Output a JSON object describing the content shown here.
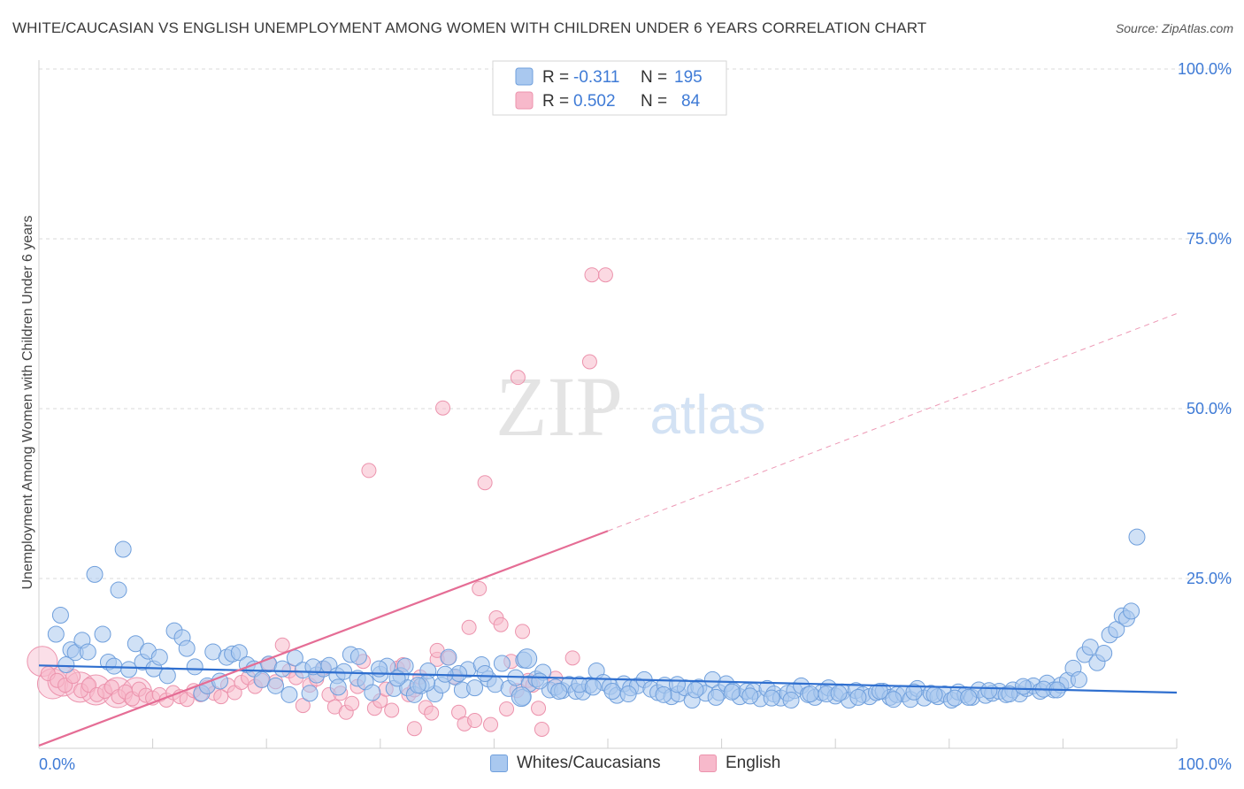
{
  "title": "WHITE/CAUCASIAN VS ENGLISH UNEMPLOYMENT AMONG WOMEN WITH CHILDREN UNDER 6 YEARS CORRELATION CHART",
  "source": "Source: ZipAtlas.com",
  "watermark": {
    "zip": "ZIP",
    "atlas": "atlas"
  },
  "colors": {
    "blue_fill": "#a9c8ef",
    "blue_stroke": "#6f9fdc",
    "blue_line": "#2f6fcf",
    "pink_fill": "#f7b9cb",
    "pink_stroke": "#ec93ad",
    "pink_line": "#e56d95",
    "axis_label": "#3f7bd6",
    "grid": "#d9d9d9"
  },
  "legend": {
    "r_label": "R =",
    "n_label": "N =",
    "rows": [
      {
        "r": "-0.311",
        "n": "195",
        "series": "blue"
      },
      {
        "r": "0.502",
        "n": "84",
        "series": "pink"
      }
    ]
  },
  "chart_data": {
    "type": "scatter",
    "title": "WHITE/CAUCASIAN VS ENGLISH UNEMPLOYMENT AMONG WOMEN WITH CHILDREN UNDER 6 YEARS CORRELATION CHART",
    "xlabel": "",
    "ylabel": "Unemployment Among Women with Children Under 6 years",
    "xlim": [
      0,
      100
    ],
    "ylim": [
      0,
      100
    ],
    "x_tick_labels": [
      "0.0%",
      "100.0%"
    ],
    "y_tick_labels": [
      "25.0%",
      "50.0%",
      "75.0%",
      "100.0%"
    ],
    "grid": true,
    "legend_position": "top-center",
    "series": [
      {
        "name": "Whites/Caucasians",
        "color": "#a9c8ef",
        "trend": {
          "x": [
            0,
            100
          ],
          "y": [
            12.2,
            8.2
          ]
        },
        "points": [
          [
            1.5,
            16.8
          ],
          [
            1.9,
            19.6
          ],
          [
            2.4,
            12.3
          ],
          [
            2.8,
            14.5
          ],
          [
            3.2,
            14.1
          ],
          [
            3.8,
            15.9
          ],
          [
            4.3,
            14.2
          ],
          [
            4.9,
            25.6
          ],
          [
            5.6,
            16.8
          ],
          [
            6.1,
            12.7
          ],
          [
            6.6,
            12.1
          ],
          [
            7.0,
            23.3
          ],
          [
            7.4,
            29.3
          ],
          [
            7.9,
            11.6
          ],
          [
            8.5,
            15.4
          ],
          [
            9.1,
            12.7
          ],
          [
            9.6,
            14.3
          ],
          [
            10.1,
            11.7
          ],
          [
            10.6,
            13.4
          ],
          [
            11.3,
            10.7
          ],
          [
            11.9,
            17.3
          ],
          [
            12.6,
            16.3
          ],
          [
            13.0,
            14.7
          ],
          [
            13.7,
            12.0
          ],
          [
            14.3,
            8.1
          ],
          [
            14.8,
            9.2
          ],
          [
            15.3,
            14.2
          ],
          [
            15.9,
            9.9
          ],
          [
            16.5,
            13.4
          ],
          [
            17.0,
            13.9
          ],
          [
            17.6,
            14.1
          ],
          [
            18.3,
            12.3
          ],
          [
            18.9,
            11.7
          ],
          [
            19.6,
            10.1
          ],
          [
            20.2,
            12.4
          ],
          [
            20.8,
            9.2
          ],
          [
            21.4,
            11.7
          ],
          [
            22.0,
            7.9
          ],
          [
            22.5,
            13.3
          ],
          [
            23.2,
            11.5
          ],
          [
            23.8,
            8.1
          ],
          [
            24.4,
            10.8
          ],
          [
            25.0,
            11.7
          ],
          [
            25.5,
            12.2
          ],
          [
            26.2,
            10.7
          ],
          [
            26.8,
            11.3
          ],
          [
            27.4,
            13.8
          ],
          [
            28.0,
            10.3
          ],
          [
            28.7,
            9.8
          ],
          [
            29.3,
            8.2
          ],
          [
            30.0,
            10.9
          ],
          [
            30.6,
            12.1
          ],
          [
            31.2,
            8.8
          ],
          [
            31.8,
            10.7
          ],
          [
            32.4,
            8.9
          ],
          [
            33.0,
            7.9
          ],
          [
            33.6,
            9.2
          ],
          [
            34.2,
            11.4
          ],
          [
            34.8,
            8.0
          ],
          [
            35.4,
            9.3
          ],
          [
            36.0,
            13.4
          ],
          [
            36.6,
            10.5
          ],
          [
            37.2,
            8.6
          ],
          [
            37.7,
            11.6
          ],
          [
            38.3,
            8.9
          ],
          [
            38.9,
            12.3
          ],
          [
            39.5,
            10.2
          ],
          [
            40.1,
            9.4
          ],
          [
            40.7,
            12.5
          ],
          [
            41.3,
            8.8
          ],
          [
            41.9,
            10.4
          ],
          [
            42.5,
            7.5
          ],
          [
            43.1,
            9.5
          ],
          [
            43.7,
            10.2
          ],
          [
            44.3,
            11.2
          ],
          [
            44.9,
            8.6
          ],
          [
            45.4,
            9.0
          ],
          [
            46.0,
            8.5
          ],
          [
            46.6,
            9.4
          ],
          [
            47.2,
            8.4
          ],
          [
            47.8,
            8.3
          ],
          [
            48.4,
            9.3
          ],
          [
            49.0,
            11.4
          ],
          [
            49.6,
            9.7
          ],
          [
            50.2,
            9.1
          ],
          [
            50.8,
            7.8
          ],
          [
            51.4,
            9.5
          ],
          [
            52.0,
            8.9
          ],
          [
            52.6,
            9.2
          ],
          [
            53.2,
            10.1
          ],
          [
            53.8,
            8.7
          ],
          [
            54.4,
            8.2
          ],
          [
            55.0,
            9.3
          ],
          [
            55.6,
            7.6
          ],
          [
            56.2,
            8.0
          ],
          [
            56.8,
            8.9
          ],
          [
            57.4,
            7.1
          ],
          [
            58.0,
            9.0
          ],
          [
            58.6,
            8.1
          ],
          [
            59.2,
            10.1
          ],
          [
            59.8,
            8.2
          ],
          [
            60.4,
            9.5
          ],
          [
            61.0,
            8.5
          ],
          [
            61.6,
            7.6
          ],
          [
            62.2,
            8.4
          ],
          [
            62.8,
            8.4
          ],
          [
            63.4,
            7.3
          ],
          [
            64.0,
            8.8
          ],
          [
            64.6,
            8.0
          ],
          [
            65.2,
            7.4
          ],
          [
            65.8,
            8.1
          ],
          [
            66.4,
            8.5
          ],
          [
            67.0,
            9.2
          ],
          [
            67.6,
            7.9
          ],
          [
            68.2,
            7.5
          ],
          [
            68.8,
            8.2
          ],
          [
            69.4,
            8.9
          ],
          [
            70.0,
            7.7
          ],
          [
            70.6,
            8.3
          ],
          [
            71.2,
            7.1
          ],
          [
            71.8,
            8.5
          ],
          [
            72.4,
            7.9
          ],
          [
            73.0,
            7.6
          ],
          [
            73.6,
            8.2
          ],
          [
            74.2,
            8.4
          ],
          [
            74.8,
            7.5
          ],
          [
            75.4,
            7.9
          ],
          [
            76.0,
            8.0
          ],
          [
            76.6,
            7.2
          ],
          [
            77.2,
            8.8
          ],
          [
            77.8,
            7.4
          ],
          [
            78.4,
            8.1
          ],
          [
            79.0,
            7.6
          ],
          [
            79.6,
            8.0
          ],
          [
            80.2,
            7.1
          ],
          [
            80.8,
            8.3
          ],
          [
            81.4,
            7.9
          ],
          [
            82.0,
            7.5
          ],
          [
            82.6,
            8.6
          ],
          [
            83.2,
            7.8
          ],
          [
            83.8,
            8.1
          ],
          [
            84.4,
            8.4
          ],
          [
            85.0,
            7.9
          ],
          [
            85.6,
            8.6
          ],
          [
            86.2,
            8.0
          ],
          [
            86.8,
            8.8
          ],
          [
            87.4,
            9.2
          ],
          [
            88.0,
            8.4
          ],
          [
            88.6,
            9.6
          ],
          [
            89.2,
            8.6
          ],
          [
            89.8,
            9.3
          ],
          [
            90.4,
            10.0
          ],
          [
            90.9,
            11.8
          ],
          [
            91.4,
            10.1
          ],
          [
            91.9,
            13.8
          ],
          [
            92.4,
            14.9
          ],
          [
            93.0,
            12.6
          ],
          [
            93.6,
            14.0
          ],
          [
            94.1,
            16.7
          ],
          [
            94.7,
            17.5
          ],
          [
            95.2,
            19.5
          ],
          [
            95.6,
            19.1
          ],
          [
            96.0,
            20.2
          ],
          [
            96.5,
            31.1
          ],
          [
            24.1,
            12.0
          ],
          [
            26.3,
            9.0
          ],
          [
            28.1,
            13.5
          ],
          [
            32.2,
            12.1
          ],
          [
            34.1,
            9.6
          ],
          [
            36.9,
            11.0
          ],
          [
            39.2,
            11.0
          ],
          [
            42.6,
            13.0
          ],
          [
            44.0,
            9.9
          ],
          [
            45.7,
            8.4
          ],
          [
            47.5,
            9.4
          ],
          [
            48.7,
            9.0
          ],
          [
            50.4,
            8.4
          ],
          [
            51.8,
            8.0
          ],
          [
            54.9,
            7.9
          ],
          [
            56.1,
            9.4
          ],
          [
            57.7,
            8.6
          ],
          [
            59.5,
            7.5
          ],
          [
            60.9,
            8.3
          ],
          [
            62.5,
            7.7
          ],
          [
            64.4,
            7.4
          ],
          [
            66.1,
            7.1
          ],
          [
            67.8,
            8.0
          ],
          [
            69.2,
            8.0
          ],
          [
            70.3,
            8.1
          ],
          [
            72.0,
            7.5
          ],
          [
            73.9,
            8.4
          ],
          [
            75.1,
            7.2
          ],
          [
            76.9,
            8.3
          ],
          [
            78.7,
            7.9
          ],
          [
            80.5,
            7.4
          ],
          [
            81.7,
            7.5
          ],
          [
            83.5,
            8.5
          ],
          [
            85.3,
            8.0
          ],
          [
            86.5,
            9.1
          ],
          [
            88.3,
            8.7
          ],
          [
            89.5,
            8.6
          ],
          [
            29.9,
            11.7
          ],
          [
            31.5,
            10.3
          ],
          [
            33.3,
            9.3
          ],
          [
            35.7,
            10.9
          ]
        ],
        "big_points": [
          [
            42.4,
            7.6
          ],
          [
            42.9,
            13.2
          ]
        ]
      },
      {
        "name": "English",
        "color": "#f7b9cb",
        "trend": {
          "x": [
            0,
            50
          ],
          "y": [
            0.4,
            32.0
          ],
          "dashed_extension": {
            "x": [
              50,
              100
            ],
            "y": [
              32.0,
              64.0
            ]
          }
        },
        "points": [
          [
            0.8,
            11.0
          ],
          [
            1.6,
            10.0
          ],
          [
            2.3,
            9.3
          ],
          [
            3.0,
            10.6
          ],
          [
            3.7,
            8.5
          ],
          [
            4.4,
            9.3
          ],
          [
            5.1,
            7.9
          ],
          [
            5.8,
            8.4
          ],
          [
            6.4,
            9.0
          ],
          [
            7.0,
            7.6
          ],
          [
            7.6,
            8.3
          ],
          [
            8.2,
            7.3
          ],
          [
            8.8,
            8.7
          ],
          [
            9.4,
            7.8
          ],
          [
            10.0,
            7.4
          ],
          [
            10.6,
            7.9
          ],
          [
            11.2,
            7.1
          ],
          [
            11.8,
            8.2
          ],
          [
            12.4,
            7.6
          ],
          [
            13.0,
            7.2
          ],
          [
            13.6,
            8.5
          ],
          [
            14.2,
            7.9
          ],
          [
            14.8,
            9.0
          ],
          [
            15.4,
            8.1
          ],
          [
            16.0,
            7.6
          ],
          [
            16.6,
            9.3
          ],
          [
            17.2,
            8.2
          ],
          [
            17.8,
            9.7
          ],
          [
            18.4,
            10.4
          ],
          [
            19.0,
            9.1
          ],
          [
            19.6,
            10.0
          ],
          [
            20.2,
            12.5
          ],
          [
            20.8,
            9.8
          ],
          [
            21.4,
            15.2
          ],
          [
            22.0,
            11.4
          ],
          [
            22.6,
            10.4
          ],
          [
            23.2,
            6.3
          ],
          [
            23.8,
            9.3
          ],
          [
            24.4,
            10.2
          ],
          [
            25.0,
            11.8
          ],
          [
            25.5,
            7.9
          ],
          [
            26.0,
            6.1
          ],
          [
            26.5,
            8.1
          ],
          [
            27.0,
            5.3
          ],
          [
            27.5,
            6.6
          ],
          [
            28.0,
            9.1
          ],
          [
            28.5,
            12.8
          ],
          [
            29.0,
            40.9
          ],
          [
            29.5,
            5.9
          ],
          [
            30.0,
            7.0
          ],
          [
            30.5,
            8.7
          ],
          [
            31.0,
            5.6
          ],
          [
            31.5,
            11.8
          ],
          [
            32.0,
            12.3
          ],
          [
            32.5,
            7.9
          ],
          [
            33.0,
            2.9
          ],
          [
            33.5,
            10.5
          ],
          [
            34.0,
            6.0
          ],
          [
            34.5,
            5.2
          ],
          [
            35.0,
            13.1
          ],
          [
            35.5,
            50.1
          ],
          [
            36.0,
            13.3
          ],
          [
            36.5,
            10.5
          ],
          [
            36.9,
            5.3
          ],
          [
            37.4,
            3.6
          ],
          [
            37.8,
            17.8
          ],
          [
            38.3,
            4.1
          ],
          [
            38.7,
            23.5
          ],
          [
            39.2,
            39.1
          ],
          [
            39.7,
            3.5
          ],
          [
            40.2,
            19.2
          ],
          [
            40.6,
            18.2
          ],
          [
            41.1,
            5.8
          ],
          [
            41.5,
            12.8
          ],
          [
            42.0,
            8.5
          ],
          [
            42.5,
            17.2
          ],
          [
            43.0,
            10.0
          ],
          [
            43.4,
            9.3
          ],
          [
            43.9,
            5.9
          ],
          [
            44.2,
            2.8
          ],
          [
            45.4,
            10.3
          ],
          [
            46.9,
            13.3
          ],
          [
            48.4,
            56.9
          ],
          [
            48.6,
            69.7
          ],
          [
            49.8,
            69.7
          ],
          [
            42.1,
            54.6
          ],
          [
            33.0,
            8.6
          ],
          [
            35.0,
            14.4
          ]
        ],
        "big_points": [
          [
            0.3,
            12.8
          ],
          [
            1.2,
            9.5
          ],
          [
            2.1,
            9.9
          ],
          [
            3.6,
            9.0
          ],
          [
            5.0,
            8.6
          ],
          [
            6.9,
            8.2
          ],
          [
            8.6,
            8.2
          ]
        ]
      }
    ]
  }
}
